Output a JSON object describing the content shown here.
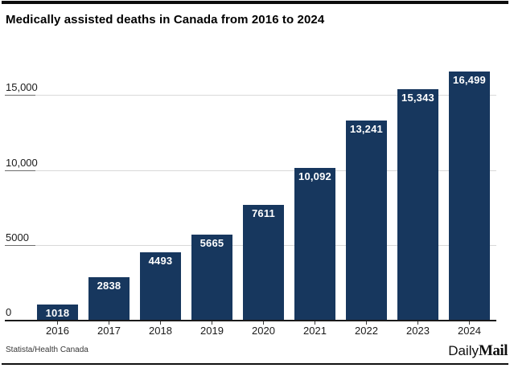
{
  "page": {
    "title": "Medically assisted deaths in Canada from 2016 to 2024",
    "source": "Statista/Health Canada",
    "branding": {
      "daily": "Daily",
      "mail": "Mail"
    }
  },
  "chart_data": {
    "type": "bar",
    "title": "Medically assisted deaths in Canada from 2016 to 2024",
    "categories": [
      "2016",
      "2017",
      "2018",
      "2019",
      "2020",
      "2021",
      "2022",
      "2023",
      "2024"
    ],
    "values": [
      1018,
      2838,
      4493,
      5665,
      7611,
      10092,
      13241,
      15343,
      16499
    ],
    "value_labels": [
      "1018",
      "2838",
      "4493",
      "5665",
      "7611",
      "10,092",
      "13,241",
      "15,343",
      "16,499"
    ],
    "xlabel": "",
    "ylabel": "",
    "ylim": [
      0,
      16800
    ],
    "yticks": [
      {
        "value": 0,
        "label": "0"
      },
      {
        "value": 5000,
        "label": "5000"
      },
      {
        "value": 10000,
        "label": "10,000"
      },
      {
        "value": 15000,
        "label": "15,000"
      }
    ],
    "grid": "horizontal",
    "legend": "none",
    "bar_color": "#17375e",
    "bar_value_label_color": "#ffffff"
  }
}
